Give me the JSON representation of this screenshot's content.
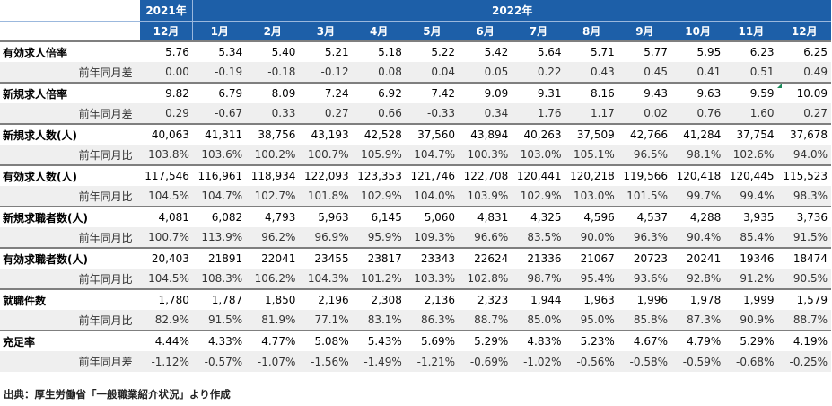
{
  "header": {
    "year_2021": "2021年",
    "year_2022": "2022年",
    "months": [
      "12月",
      "1月",
      "2月",
      "3月",
      "4月",
      "5月",
      "6月",
      "7月",
      "8月",
      "9月",
      "10月",
      "11月",
      "12月"
    ]
  },
  "blocks": [
    {
      "label": "有効求人倍率",
      "values": [
        "5.76",
        "5.34",
        "5.40",
        "5.21",
        "5.18",
        "5.22",
        "5.42",
        "5.64",
        "5.71",
        "5.77",
        "5.95",
        "6.23",
        "6.25"
      ],
      "sub_label": "前年同月差",
      "sub_values": [
        "0.00",
        "-0.19",
        "-0.18",
        "-0.12",
        "0.08",
        "0.04",
        "0.05",
        "0.22",
        "0.43",
        "0.45",
        "0.41",
        "0.51",
        "0.49"
      ]
    },
    {
      "label": "新規求人倍率",
      "values": [
        "9.82",
        "6.79",
        "8.09",
        "7.24",
        "6.92",
        "7.42",
        "9.09",
        "9.31",
        "8.16",
        "9.43",
        "9.63",
        "9.59",
        "10.09"
      ],
      "sub_label": "前年同月差",
      "sub_values": [
        "0.29",
        "-0.67",
        "0.33",
        "0.27",
        "0.66",
        "-0.33",
        "0.34",
        "1.76",
        "1.17",
        "0.02",
        "0.76",
        "1.60",
        "0.27"
      ]
    },
    {
      "label": "新規求人数(人)",
      "values": [
        "40,063",
        "41,311",
        "38,756",
        "43,193",
        "42,528",
        "37,560",
        "43,894",
        "40,263",
        "37,509",
        "42,766",
        "41,284",
        "37,754",
        "37,678"
      ],
      "sub_label": "前年同月比",
      "sub_values": [
        "103.8%",
        "103.6%",
        "100.2%",
        "100.7%",
        "105.9%",
        "104.7%",
        "100.3%",
        "103.0%",
        "105.1%",
        "96.5%",
        "98.1%",
        "102.6%",
        "94.0%"
      ]
    },
    {
      "label": "有効求人数(人)",
      "values": [
        "117,546",
        "116,961",
        "118,934",
        "122,093",
        "123,353",
        "121,746",
        "122,708",
        "120,441",
        "120,218",
        "119,566",
        "120,418",
        "120,445",
        "115,523"
      ],
      "sub_label": "前年同月比",
      "sub_values": [
        "104.5%",
        "104.7%",
        "102.7%",
        "101.8%",
        "102.9%",
        "104.0%",
        "103.9%",
        "102.9%",
        "103.0%",
        "101.5%",
        "99.7%",
        "99.4%",
        "98.3%"
      ]
    },
    {
      "label": "新規求職者数(人)",
      "values": [
        "4,081",
        "6,082",
        "4,793",
        "5,963",
        "6,145",
        "5,060",
        "4,831",
        "4,325",
        "4,596",
        "4,537",
        "4,288",
        "3,935",
        "3,736"
      ],
      "sub_label": "前年同月比",
      "sub_values": [
        "100.7%",
        "113.9%",
        "96.2%",
        "96.9%",
        "95.9%",
        "109.3%",
        "96.6%",
        "83.5%",
        "90.0%",
        "96.3%",
        "90.4%",
        "85.4%",
        "91.5%"
      ]
    },
    {
      "label": "有効求職者数(人)",
      "values": [
        "20,403",
        "21891",
        "22041",
        "23455",
        "23817",
        "23343",
        "22624",
        "21336",
        "21067",
        "20723",
        "20241",
        "19346",
        "18474"
      ],
      "sub_label": "前年同月比",
      "sub_values": [
        "104.5%",
        "108.3%",
        "106.2%",
        "104.3%",
        "101.2%",
        "103.3%",
        "102.8%",
        "98.7%",
        "95.4%",
        "93.6%",
        "92.8%",
        "91.2%",
        "90.5%"
      ]
    },
    {
      "label": "就職件数",
      "values": [
        "1,780",
        "1,787",
        "1,850",
        "2,196",
        "2,308",
        "2,136",
        "2,323",
        "1,944",
        "1,963",
        "1,996",
        "1,978",
        "1,999",
        "1,579"
      ],
      "sub_label": "前年同月比",
      "sub_values": [
        "82.9%",
        "91.5%",
        "81.9%",
        "77.1%",
        "83.1%",
        "86.3%",
        "88.7%",
        "85.0%",
        "95.0%",
        "85.8%",
        "87.3%",
        "90.9%",
        "88.7%"
      ]
    },
    {
      "label": "充足率",
      "values": [
        "4.44%",
        "4.33%",
        "4.77%",
        "5.08%",
        "5.43%",
        "5.69%",
        "5.29%",
        "4.83%",
        "5.23%",
        "4.67%",
        "4.79%",
        "5.29%",
        "4.19%"
      ],
      "sub_label": "前年同月差",
      "sub_values": [
        "-1.12%",
        "-0.57%",
        "-1.07%",
        "-1.56%",
        "-1.49%",
        "-1.21%",
        "-0.69%",
        "-1.02%",
        "-0.56%",
        "-0.58%",
        "-0.59%",
        "-0.68%",
        "-0.25%"
      ]
    }
  ],
  "colors": {
    "header_bg": "#1d5fa8",
    "header_text": "#ffffff",
    "sub_row_bg": "#efefef",
    "negative_text": "#e8464a",
    "comment_marker": "#1a8a5a"
  },
  "source_note": "出典：厚生労働省「一般職業紹介状況」より作成"
}
